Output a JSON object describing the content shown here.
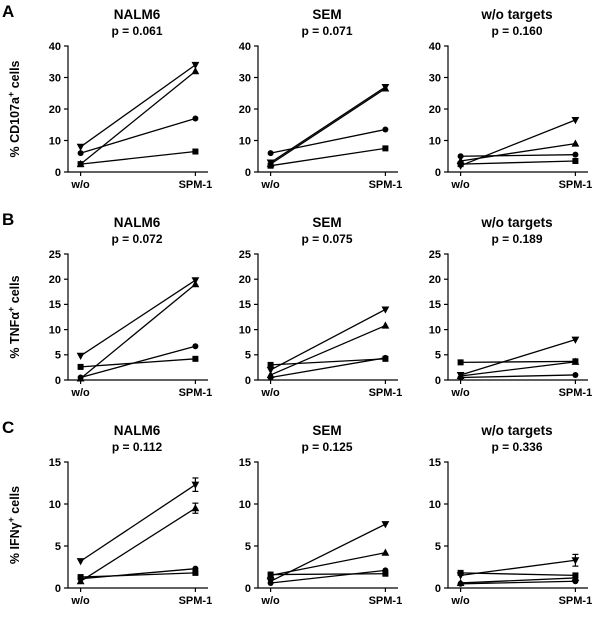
{
  "colors": {
    "ink": "#000000",
    "background": "#ffffff"
  },
  "chart_data": [
    {
      "type": "line",
      "row_label": "A",
      "ylabel": {
        "pre": "% CD107a",
        "sup": "+",
        "post": " cells"
      },
      "ylim": [
        0,
        40
      ],
      "yticks": [
        0,
        10,
        20,
        30,
        40
      ],
      "categories": [
        "w/o",
        "SPM-1"
      ],
      "legend": "none",
      "grid": false,
      "panels": [
        {
          "title": "NALM6",
          "pvalue": "p = 0.061",
          "series": [
            {
              "marker": "triangle-down",
              "values": [
                8,
                34
              ]
            },
            {
              "marker": "triangle-up",
              "values": [
                2.5,
                32
              ]
            },
            {
              "marker": "circle",
              "values": [
                6,
                17
              ]
            },
            {
              "marker": "square",
              "values": [
                2.5,
                6.5
              ]
            }
          ]
        },
        {
          "title": "SEM",
          "pvalue": "p = 0.071",
          "series": [
            {
              "marker": "triangle-down",
              "values": [
                3,
                27
              ]
            },
            {
              "marker": "triangle-up",
              "values": [
                2.5,
                26.5
              ]
            },
            {
              "marker": "circle",
              "values": [
                6,
                13.5
              ]
            },
            {
              "marker": "square",
              "values": [
                2,
                7.5
              ]
            }
          ]
        },
        {
          "title": "w/o targets",
          "pvalue": "p = 0.160",
          "series": [
            {
              "marker": "triangle-down",
              "values": [
                2,
                16.5
              ]
            },
            {
              "marker": "triangle-up",
              "values": [
                3.5,
                9
              ]
            },
            {
              "marker": "circle",
              "values": [
                5,
                5.5
              ]
            },
            {
              "marker": "square",
              "values": [
                2.5,
                3.5
              ]
            }
          ]
        }
      ]
    },
    {
      "type": "line",
      "row_label": "B",
      "ylabel": {
        "pre": "% TNFα",
        "sup": "+",
        "post": " cells"
      },
      "ylim": [
        0,
        25
      ],
      "yticks": [
        0,
        5,
        10,
        15,
        20,
        25
      ],
      "categories": [
        "w/o",
        "SPM-1"
      ],
      "legend": "none",
      "grid": false,
      "panels": [
        {
          "title": "NALM6",
          "pvalue": "p = 0.072",
          "series": [
            {
              "marker": "triangle-down",
              "values": [
                4.8,
                19.8
              ]
            },
            {
              "marker": "triangle-up",
              "values": [
                0.3,
                19
              ]
            },
            {
              "marker": "circle",
              "values": [
                0.5,
                6.7
              ]
            },
            {
              "marker": "square",
              "values": [
                2.6,
                4.2
              ]
            }
          ]
        },
        {
          "title": "SEM",
          "pvalue": "p = 0.075",
          "series": [
            {
              "marker": "triangle-down",
              "values": [
                2,
                14
              ]
            },
            {
              "marker": "triangle-up",
              "values": [
                1,
                10.8
              ]
            },
            {
              "marker": "circle",
              "values": [
                0.5,
                4.4
              ]
            },
            {
              "marker": "square",
              "values": [
                3,
                4.2
              ]
            }
          ]
        },
        {
          "title": "w/o targets",
          "pvalue": "p = 0.189",
          "series": [
            {
              "marker": "triangle-down",
              "values": [
                1,
                8
              ]
            },
            {
              "marker": "triangle-up",
              "values": [
                0.8,
                3.6
              ]
            },
            {
              "marker": "circle",
              "values": [
                0.5,
                1
              ]
            },
            {
              "marker": "square",
              "values": [
                3.5,
                3.7
              ]
            }
          ]
        }
      ]
    },
    {
      "type": "line",
      "row_label": "C",
      "ylabel": {
        "pre": "% IFNγ",
        "sup": "+",
        "post": " cells"
      },
      "ylim": [
        0,
        15
      ],
      "yticks": [
        0,
        5,
        10,
        15
      ],
      "categories": [
        "w/o",
        "SPM-1"
      ],
      "legend": "none",
      "grid": false,
      "panels": [
        {
          "title": "NALM6",
          "pvalue": "p = 0.112",
          "series": [
            {
              "marker": "triangle-down",
              "values": [
                3.2,
                12.3
              ],
              "err": [
                0,
                0.8
              ]
            },
            {
              "marker": "triangle-up",
              "values": [
                0.8,
                9.5
              ],
              "err": [
                0,
                0.6
              ]
            },
            {
              "marker": "circle",
              "values": [
                1.1,
                2.3
              ]
            },
            {
              "marker": "square",
              "values": [
                1.3,
                1.8
              ]
            }
          ]
        },
        {
          "title": "SEM",
          "pvalue": "p = 0.125",
          "series": [
            {
              "marker": "triangle-down",
              "values": [
                0.8,
                7.6
              ]
            },
            {
              "marker": "triangle-up",
              "values": [
                1.5,
                4.2
              ]
            },
            {
              "marker": "circle",
              "values": [
                0.6,
                2.1
              ]
            },
            {
              "marker": "square",
              "values": [
                1.6,
                1.7
              ]
            }
          ]
        },
        {
          "title": "w/o targets",
          "pvalue": "p = 0.336",
          "series": [
            {
              "marker": "triangle-down",
              "values": [
                1.5,
                3.3
              ],
              "err": [
                0,
                0.7
              ]
            },
            {
              "marker": "square",
              "values": [
                1.8,
                1.5
              ]
            },
            {
              "marker": "triangle-up",
              "values": [
                0.6,
                1.2
              ]
            },
            {
              "marker": "circle",
              "values": [
                0.5,
                0.8
              ]
            }
          ]
        }
      ]
    }
  ]
}
